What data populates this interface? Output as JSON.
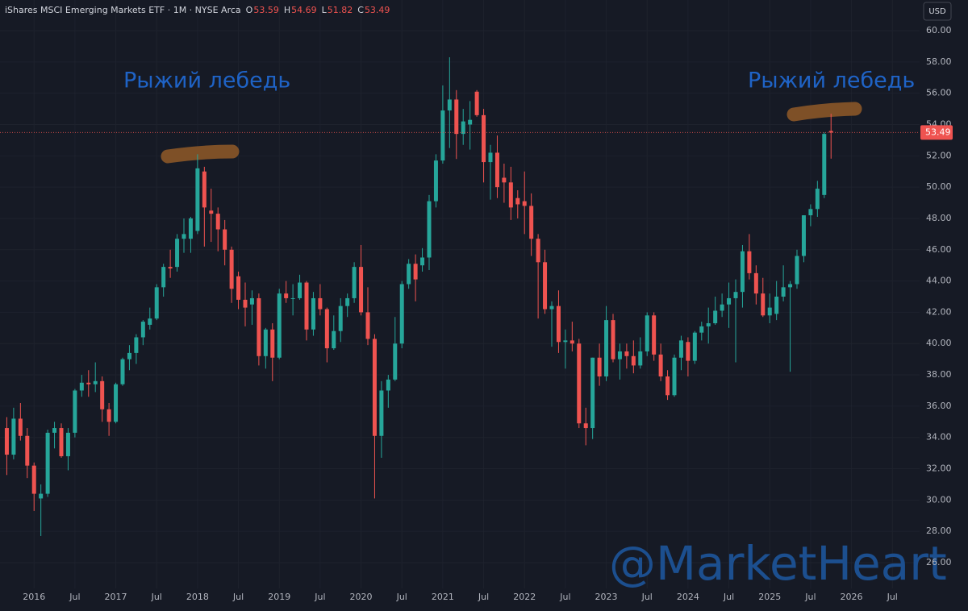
{
  "chart_data": {
    "type": "candlestick",
    "title": "iShares MSCI Emerging Markets ETF · 1M · NYSE Arca",
    "ohlc_labels": [
      "O",
      "H",
      "L",
      "C"
    ],
    "currency": "USD",
    "annotations": [
      "Рыжий лебедь",
      "Рыжий лебедь"
    ],
    "watermark": "@MarketHeart",
    "up_color": "#26a69a",
    "down_color": "#ef5350",
    "grid": true,
    "xlim": [
      "2015-08",
      "2026-11"
    ],
    "ylim": [
      24.35,
      61.96
    ],
    "yticks": [
      {
        "value": 26,
        "label": "26.00"
      },
      {
        "value": 28,
        "label": "28.00"
      },
      {
        "value": 30,
        "label": "30.00"
      },
      {
        "value": 32,
        "label": "32.00"
      },
      {
        "value": 34,
        "label": "34.00"
      },
      {
        "value": 36,
        "label": "36.00"
      },
      {
        "value": 38,
        "label": "38.00"
      },
      {
        "value": 40,
        "label": "40.00"
      },
      {
        "value": 42,
        "label": "42.00"
      },
      {
        "value": 44,
        "label": "44.00"
      },
      {
        "value": 46,
        "label": "46.00"
      },
      {
        "value": 48,
        "label": "48.00"
      },
      {
        "value": 50,
        "label": "50.00"
      },
      {
        "value": 52,
        "label": "52.00"
      },
      {
        "value": 54,
        "label": "54.00"
      },
      {
        "value": 56,
        "label": "56.00"
      },
      {
        "value": 58,
        "label": "58.00"
      },
      {
        "value": 60,
        "label": "60.00"
      }
    ],
    "xticks": [
      {
        "value": "2016-01",
        "label": "2016"
      },
      {
        "value": "2016-07",
        "label": "Jul"
      },
      {
        "value": "2017-01",
        "label": "2017"
      },
      {
        "value": "2017-07",
        "label": "Jul"
      },
      {
        "value": "2018-01",
        "label": "2018"
      },
      {
        "value": "2018-07",
        "label": "Jul"
      },
      {
        "value": "2019-01",
        "label": "2019"
      },
      {
        "value": "2019-07",
        "label": "Jul"
      },
      {
        "value": "2020-01",
        "label": "2020"
      },
      {
        "value": "2020-07",
        "label": "Jul"
      },
      {
        "value": "2021-01",
        "label": "2021"
      },
      {
        "value": "2021-07",
        "label": "Jul"
      },
      {
        "value": "2022-01",
        "label": "2022"
      },
      {
        "value": "2022-07",
        "label": "Jul"
      },
      {
        "value": "2023-01",
        "label": "2023"
      },
      {
        "value": "2023-07",
        "label": "Jul"
      },
      {
        "value": "2024-01",
        "label": "2024"
      },
      {
        "value": "2024-07",
        "label": "Jul"
      },
      {
        "value": "2025-01",
        "label": "2025"
      },
      {
        "value": "2025-07",
        "label": "Jul"
      },
      {
        "value": "2026-01",
        "label": "2026"
      },
      {
        "value": "2026-07",
        "label": "Jul"
      }
    ],
    "x": [
      "2015-09",
      "2015-10",
      "2015-11",
      "2015-12",
      "2016-01",
      "2016-02",
      "2016-03",
      "2016-04",
      "2016-05",
      "2016-06",
      "2016-07",
      "2016-08",
      "2016-09",
      "2016-10",
      "2016-11",
      "2016-12",
      "2017-01",
      "2017-02",
      "2017-03",
      "2017-04",
      "2017-05",
      "2017-06",
      "2017-07",
      "2017-08",
      "2017-09",
      "2017-10",
      "2017-11",
      "2017-12",
      "2018-01",
      "2018-02",
      "2018-03",
      "2018-04",
      "2018-05",
      "2018-06",
      "2018-07",
      "2018-08",
      "2018-09",
      "2018-10",
      "2018-11",
      "2018-12",
      "2019-01",
      "2019-02",
      "2019-03",
      "2019-04",
      "2019-05",
      "2019-06",
      "2019-07",
      "2019-08",
      "2019-09",
      "2019-10",
      "2019-11",
      "2019-12",
      "2020-01",
      "2020-02",
      "2020-03",
      "2020-04",
      "2020-05",
      "2020-06",
      "2020-07",
      "2020-08",
      "2020-09",
      "2020-10",
      "2020-11",
      "2020-12",
      "2021-01",
      "2021-02",
      "2021-03",
      "2021-04",
      "2021-05",
      "2021-06",
      "2021-07",
      "2021-08",
      "2021-09",
      "2021-10",
      "2021-11",
      "2021-12",
      "2022-01",
      "2022-02",
      "2022-03",
      "2022-04",
      "2022-05",
      "2022-06",
      "2022-07",
      "2022-08",
      "2022-09",
      "2022-10",
      "2022-11",
      "2022-12",
      "2023-01",
      "2023-02",
      "2023-03",
      "2023-04",
      "2023-05",
      "2023-06",
      "2023-07",
      "2023-08",
      "2023-09",
      "2023-10",
      "2023-11",
      "2023-12",
      "2024-01",
      "2024-02",
      "2024-03",
      "2024-04",
      "2024-05",
      "2024-06",
      "2024-07",
      "2024-08",
      "2024-09",
      "2024-10",
      "2024-11",
      "2024-12",
      "2025-01",
      "2025-02",
      "2025-03",
      "2025-04",
      "2025-05",
      "2025-06",
      "2025-07",
      "2025-08",
      "2025-09",
      "2025-10"
    ],
    "open": [
      34.6,
      32.9,
      35.2,
      34.1,
      32.2,
      30.1,
      30.4,
      34.3,
      34.6,
      32.8,
      34.3,
      37.0,
      37.5,
      37.4,
      37.6,
      35.8,
      35.0,
      37.4,
      39.0,
      39.4,
      40.4,
      41.2,
      41.6,
      43.6,
      44.9,
      44.9,
      46.7,
      46.7,
      47.2,
      51.0,
      48.5,
      48.3,
      47.3,
      46.0,
      44.3,
      42.8,
      42.5,
      42.9,
      39.2,
      40.9,
      39.1,
      43.2,
      42.9,
      42.9,
      43.9,
      40.9,
      42.9,
      42.2,
      39.7,
      40.8,
      42.4,
      42.9,
      44.9,
      42.0,
      40.3,
      34.1,
      37.0,
      37.7,
      40.0,
      43.8,
      45.1,
      45.0,
      45.5,
      49.1,
      51.7,
      54.9,
      55.6,
      53.4,
      54.0,
      56.1,
      54.6,
      51.6,
      52.2,
      50.6,
      50.3,
      49.3,
      49.1,
      48.8,
      46.7,
      45.2,
      42.2,
      42.4,
      40.1,
      40.2,
      40.0,
      34.9,
      34.6,
      39.1,
      37.9,
      41.5,
      39.0,
      39.5,
      39.2,
      38.6,
      39.5,
      41.8,
      39.3,
      37.9,
      36.7,
      39.1,
      40.1,
      38.9,
      40.7,
      41.1,
      41.3,
      42.1,
      42.5,
      42.9,
      43.3,
      45.9,
      44.5,
      43.2,
      41.8,
      41.9,
      43.0,
      43.6,
      43.8,
      45.6,
      48.2,
      48.6,
      49.5,
      53.59
    ],
    "high": [
      35.3,
      35.9,
      36.2,
      34.6,
      32.4,
      31.0,
      34.5,
      35.0,
      34.9,
      34.6,
      37.1,
      38.0,
      38.3,
      38.8,
      37.9,
      36.2,
      37.5,
      39.1,
      39.9,
      40.6,
      41.5,
      42.3,
      43.8,
      45.1,
      46.0,
      47.0,
      48.0,
      48.1,
      52.1,
      51.3,
      49.9,
      48.7,
      47.9,
      46.2,
      44.6,
      43.9,
      43.4,
      43.2,
      41.0,
      41.3,
      43.5,
      44.0,
      43.8,
      44.4,
      44.0,
      43.3,
      43.8,
      42.3,
      41.8,
      42.9,
      43.2,
      45.2,
      46.3,
      43.6,
      40.6,
      37.6,
      38.0,
      41.7,
      44.0,
      45.4,
      45.7,
      46.1,
      49.5,
      52.1,
      56.5,
      58.3,
      56.2,
      55.0,
      55.5,
      56.2,
      55.0,
      52.7,
      53.3,
      51.5,
      51.3,
      49.8,
      51.0,
      49.6,
      47.0,
      46.0,
      42.7,
      43.4,
      40.9,
      41.4,
      40.3,
      35.9,
      39.1,
      40.0,
      42.4,
      41.9,
      40.0,
      40.0,
      40.2,
      40.4,
      42.0,
      42.0,
      40.0,
      38.3,
      39.3,
      40.5,
      40.4,
      40.8,
      41.4,
      42.3,
      43.0,
      43.2,
      43.9,
      44.1,
      46.3,
      47.0,
      45.0,
      44.2,
      43.2,
      44.0,
      45.0,
      44.0,
      46.0,
      48.2,
      48.9,
      50.4,
      53.5,
      54.69
    ],
    "low": [
      31.6,
      32.6,
      33.8,
      31.4,
      29.3,
      27.7,
      30.2,
      33.3,
      32.7,
      31.9,
      34.0,
      36.6,
      36.6,
      36.9,
      35.0,
      34.1,
      34.9,
      37.3,
      38.3,
      38.7,
      39.9,
      40.9,
      41.5,
      43.0,
      44.2,
      44.6,
      45.8,
      45.8,
      47.0,
      46.2,
      46.5,
      45.9,
      45.0,
      42.6,
      42.2,
      41.1,
      41.2,
      38.6,
      38.4,
      37.6,
      39.0,
      42.6,
      41.8,
      42.8,
      40.2,
      40.5,
      41.8,
      38.8,
      39.6,
      40.1,
      41.7,
      42.6,
      41.8,
      39.9,
      30.1,
      32.7,
      35.9,
      37.6,
      39.7,
      43.5,
      42.7,
      44.6,
      44.7,
      48.7,
      51.5,
      52.5,
      51.8,
      52.7,
      52.4,
      54.5,
      50.3,
      49.2,
      49.3,
      49.0,
      47.9,
      48.0,
      47.0,
      45.6,
      41.6,
      41.9,
      39.8,
      39.4,
      38.4,
      39.5,
      34.6,
      33.5,
      33.9,
      37.3,
      37.6,
      38.8,
      37.7,
      38.4,
      38.1,
      38.4,
      39.2,
      38.9,
      37.6,
      36.4,
      36.6,
      38.3,
      37.9,
      38.7,
      40.2,
      40.0,
      41.2,
      41.7,
      41.0,
      38.8,
      42.3,
      44.1,
      42.5,
      41.7,
      41.3,
      41.5,
      42.7,
      38.2,
      43.5,
      45.2,
      47.5,
      48.1,
      49.3,
      51.82
    ],
    "close": [
      32.9,
      35.2,
      34.1,
      32.2,
      30.4,
      30.4,
      34.3,
      34.6,
      32.8,
      34.3,
      37.0,
      37.5,
      37.4,
      37.6,
      35.8,
      35.0,
      37.4,
      39.0,
      39.4,
      40.4,
      41.4,
      41.6,
      43.6,
      44.9,
      44.8,
      46.7,
      47.0,
      48.0,
      51.2,
      48.7,
      48.3,
      47.3,
      46.0,
      43.5,
      42.8,
      42.3,
      42.9,
      39.2,
      40.9,
      39.1,
      43.2,
      42.9,
      42.9,
      43.9,
      40.9,
      42.9,
      42.2,
      39.7,
      40.8,
      42.4,
      42.9,
      44.9,
      42.0,
      40.3,
      34.1,
      37.0,
      37.7,
      40.0,
      43.8,
      45.1,
      44.1,
      45.5,
      49.1,
      51.7,
      54.9,
      55.6,
      53.4,
      54.2,
      54.3,
      54.6,
      51.6,
      52.2,
      50.0,
      50.3,
      48.7,
      48.9,
      48.8,
      46.7,
      45.2,
      42.2,
      42.4,
      40.1,
      40.2,
      40.0,
      34.9,
      34.6,
      39.1,
      37.9,
      41.5,
      39.0,
      39.5,
      39.2,
      38.6,
      39.5,
      41.8,
      39.3,
      37.9,
      36.7,
      39.1,
      40.2,
      38.9,
      40.7,
      41.1,
      41.3,
      42.1,
      42.5,
      42.9,
      43.3,
      45.9,
      44.5,
      43.2,
      41.8,
      42.3,
      43.0,
      43.6,
      43.8,
      45.6,
      48.2,
      48.6,
      49.9,
      53.4,
      53.49
    ]
  }
}
